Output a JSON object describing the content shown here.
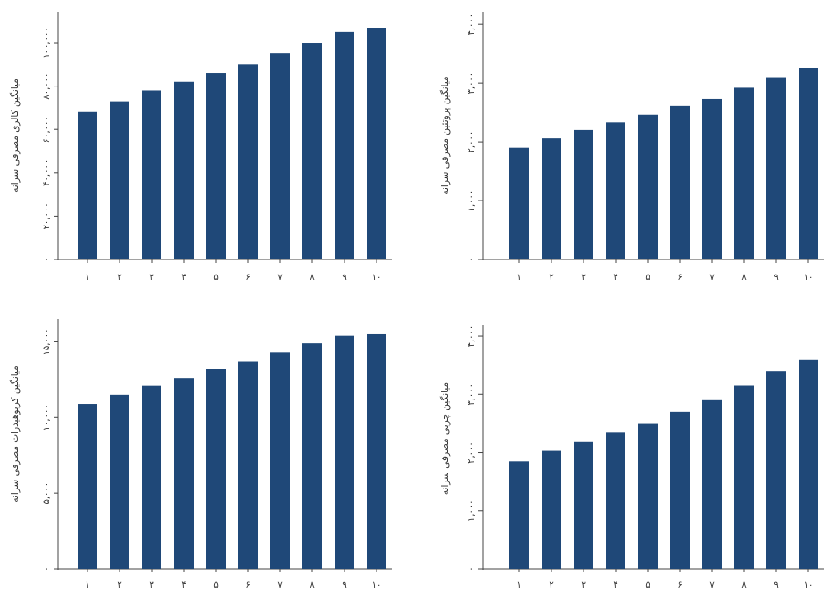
{
  "colors": {
    "bar": "#1f4878",
    "axis": "#444444",
    "text": "#333333"
  },
  "chart_data": [
    {
      "type": "bar",
      "ylabel": "میانگین کالری مصرفی سرانه",
      "categories": [
        "۱",
        "۲",
        "۳",
        "۴",
        "۵",
        "۶",
        "۷",
        "۸",
        "۹",
        "۱۰"
      ],
      "values": [
        68000,
        73000,
        78000,
        82000,
        86000,
        90000,
        95000,
        100000,
        105000,
        107000
      ],
      "ylim": [
        0,
        114000
      ],
      "yticks": [
        0,
        20000,
        40000,
        60000,
        80000,
        100000
      ],
      "ytick_labels": [
        "۰",
        "۲۰,۰۰۰",
        "۴۰,۰۰۰",
        "۶۰,۰۰۰",
        "۸۰,۰۰۰",
        "۱۰۰,۰۰۰"
      ],
      "grid": false
    },
    {
      "type": "bar",
      "ylabel": "میانگین پروتئین مصرفی سرانه",
      "categories": [
        "۱",
        "۲",
        "۳",
        "۴",
        "۵",
        "۶",
        "۷",
        "۸",
        "۹",
        "۱۰"
      ],
      "values": [
        1900,
        2060,
        2200,
        2330,
        2460,
        2610,
        2730,
        2920,
        3100,
        3260
      ],
      "ylim": [
        0,
        4200
      ],
      "yticks": [
        0,
        1000,
        2000,
        3000,
        4000
      ],
      "ytick_labels": [
        "۰",
        "۱,۰۰۰",
        "۲,۰۰۰",
        "۳,۰۰۰",
        "۴,۰۰۰"
      ],
      "grid": false
    },
    {
      "type": "bar",
      "ylabel": "میانگین کربوهیدرات مصرفی سرانه",
      "categories": [
        "۱",
        "۲",
        "۳",
        "۴",
        "۵",
        "۶",
        "۷",
        "۸",
        "۹",
        "۱۰"
      ],
      "values": [
        10900,
        11500,
        12100,
        12600,
        13200,
        13700,
        14300,
        14900,
        15400,
        15500
      ],
      "ylim": [
        0,
        16500
      ],
      "yticks": [
        0,
        5000,
        10000,
        15000
      ],
      "ytick_labels": [
        "۰",
        "۵,۰۰۰",
        "۱۰,۰۰۰",
        "۱۵,۰۰۰"
      ],
      "grid": false
    },
    {
      "type": "bar",
      "ylabel": "میانگین چربی مصرفی سرانه",
      "categories": [
        "۱",
        "۲",
        "۳",
        "۴",
        "۵",
        "۶",
        "۷",
        "۸",
        "۹",
        "۱۰"
      ],
      "values": [
        1850,
        2030,
        2180,
        2340,
        2490,
        2700,
        2900,
        3150,
        3400,
        3590
      ],
      "ylim": [
        0,
        4200
      ],
      "yticks": [
        0,
        1000,
        2000,
        3000,
        4000
      ],
      "ytick_labels": [
        "۰",
        "۱,۰۰۰",
        "۲,۰۰۰",
        "۳,۰۰۰",
        "۴,۰۰۰"
      ],
      "grid": false
    }
  ]
}
